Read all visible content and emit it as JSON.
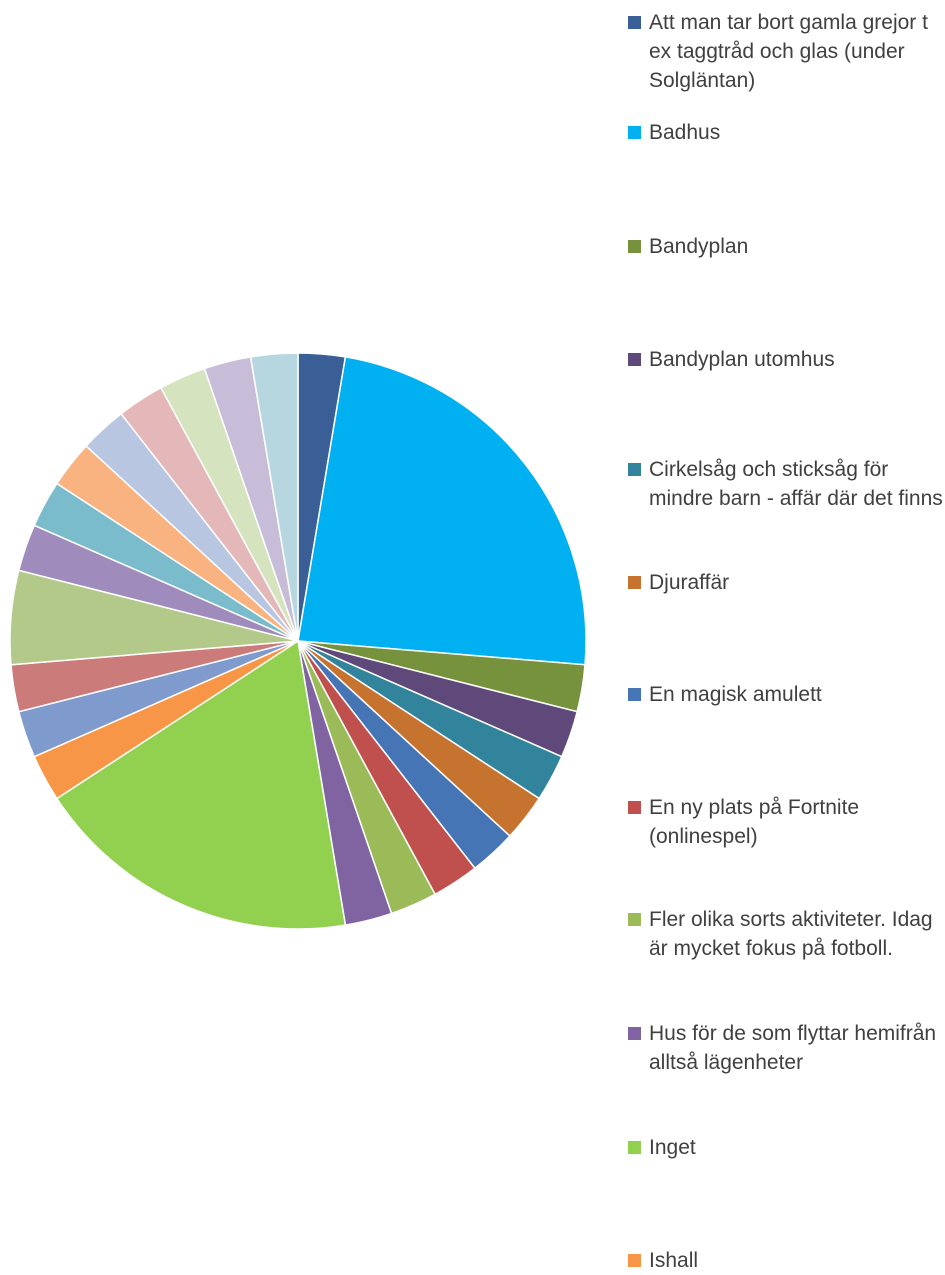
{
  "chart_data": {
    "type": "pie",
    "title": "",
    "legend_position": "right",
    "slices": [
      {
        "label": "Att man tar bort gamla grejor t ex taggtråd och glas (under Solgläntan)",
        "value": 1,
        "color": "#3a5f96"
      },
      {
        "label": "Badhus",
        "value": 9,
        "color": "#00b0f0"
      },
      {
        "label": "Bandyplan",
        "value": 1,
        "color": "#76923c"
      },
      {
        "label": "Bandyplan utomhus",
        "value": 1,
        "color": "#5f497a"
      },
      {
        "label": "Cirkelsåg och sticksåg för mindre barn - affär där det finns",
        "value": 1,
        "color": "#31849b"
      },
      {
        "label": "Djuraffär",
        "value": 1,
        "color": "#c5732e"
      },
      {
        "label": "En magisk amulett",
        "value": 1,
        "color": "#4675b5"
      },
      {
        "label": "En ny plats på Fortnite (onlinespel)",
        "value": 1,
        "color": "#c0504d"
      },
      {
        "label": "Fler olika sorts aktiviteter. Idag är mycket fokus på fotboll.",
        "value": 1,
        "color": "#9bbb59"
      },
      {
        "label": "Hus för de som flyttar hemifrån alltså lägenheter",
        "value": 1,
        "color": "#8064a2"
      },
      {
        "label": "Inget",
        "value": 7,
        "color": "#92d050"
      },
      {
        "label": "Ishall",
        "value": 1,
        "color": "#f79646"
      },
      {
        "label": "",
        "value": 1,
        "color": "#7f9acc"
      },
      {
        "label": "",
        "value": 1,
        "color": "#cc7b7b"
      },
      {
        "label": "",
        "value": 2,
        "color": "#b3c98a"
      },
      {
        "label": "",
        "value": 1,
        "color": "#a08cbc"
      },
      {
        "label": "",
        "value": 1,
        "color": "#7bbccc"
      },
      {
        "label": "",
        "value": 1,
        "color": "#f9b380"
      },
      {
        "label": "",
        "value": 1,
        "color": "#b8c6e2"
      },
      {
        "label": "",
        "value": 1,
        "color": "#e4b8b8"
      },
      {
        "label": "",
        "value": 1,
        "color": "#d6e3bf"
      },
      {
        "label": "",
        "value": 1,
        "color": "#c8bdd8"
      },
      {
        "label": "",
        "value": 1,
        "color": "#b6d7e0"
      }
    ]
  }
}
